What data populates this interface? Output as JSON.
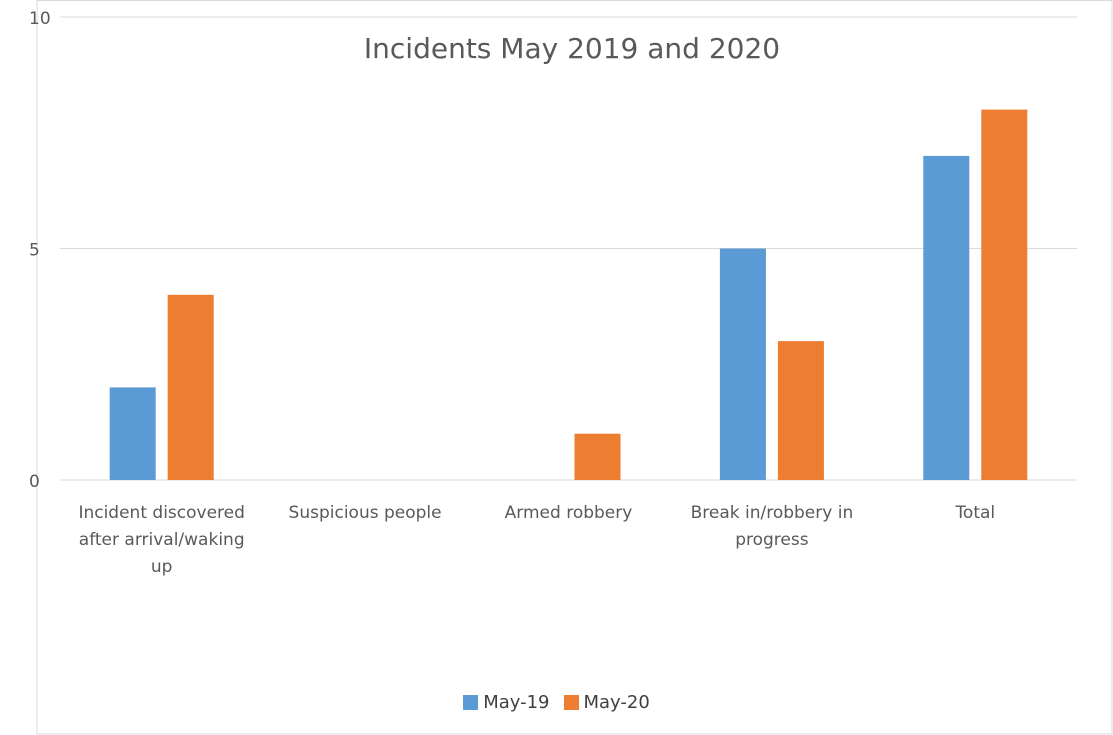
{
  "chart_data": {
    "type": "bar",
    "title": "Incidents May 2019 and 2020",
    "xlabel": "",
    "ylabel": "",
    "ylim": [
      0,
      10
    ],
    "yticks": [
      0,
      5,
      10
    ],
    "grid": true,
    "legend_position": "bottom",
    "categories": [
      "Incident discovered after arrival/waking up",
      "Suspicious people",
      "Armed robbery",
      "Break in/robbery in progress",
      "Total"
    ],
    "series": [
      {
        "name": "May-19",
        "color": "#5b9bd5",
        "values": [
          2,
          0,
          0,
          5,
          7
        ]
      },
      {
        "name": "May-20",
        "color": "#ed7d31",
        "values": [
          4,
          0,
          1,
          3,
          8
        ]
      }
    ]
  }
}
